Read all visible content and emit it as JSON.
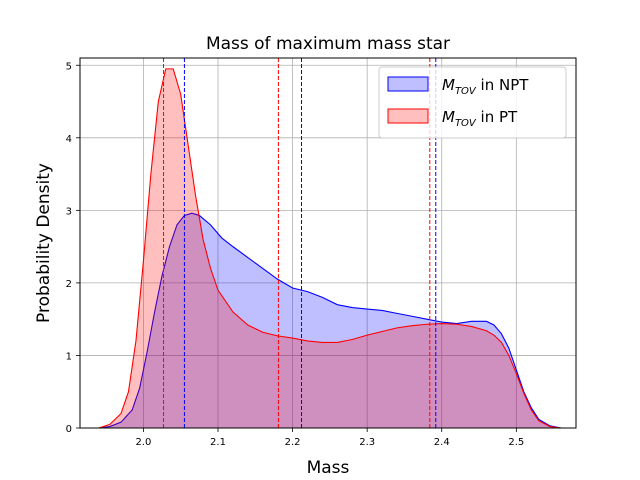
{
  "chart_data": {
    "type": "area",
    "title": "Mass of maximum mass star",
    "xlabel": "Mass",
    "ylabel": "Probability Density",
    "xlim": [
      1.915,
      2.58
    ],
    "ylim": [
      0,
      5.1
    ],
    "xticks": [
      2.0,
      2.1,
      2.2,
      2.3,
      2.4,
      2.5
    ],
    "xtick_labels": [
      "2.0",
      "2.1",
      "2.2",
      "2.3",
      "2.4",
      "2.5"
    ],
    "yticks": [
      0,
      1,
      2,
      3,
      4,
      5
    ],
    "ytick_labels": [
      "0",
      "1",
      "2",
      "3",
      "4",
      "5"
    ],
    "grid": true,
    "legend_position": "upper-right",
    "series": [
      {
        "name": "NPT",
        "legend_main": "M",
        "legend_sub": "TOV",
        "legend_suffix": " in NPT",
        "line_color": "#0000ff",
        "fill_color": "#0000ff",
        "x": [
          1.94,
          1.955,
          1.97,
          1.985,
          1.995,
          2.005,
          2.015,
          2.025,
          2.035,
          2.045,
          2.055,
          2.065,
          2.075,
          2.09,
          2.105,
          2.12,
          2.14,
          2.16,
          2.18,
          2.2,
          2.22,
          2.24,
          2.26,
          2.28,
          2.3,
          2.32,
          2.34,
          2.36,
          2.38,
          2.4,
          2.42,
          2.44,
          2.46,
          2.47,
          2.48,
          2.49,
          2.5,
          2.51,
          2.52,
          2.53,
          2.545,
          2.56
        ],
        "y": [
          0.0,
          0.02,
          0.08,
          0.25,
          0.55,
          1.05,
          1.6,
          2.1,
          2.5,
          2.8,
          2.93,
          2.96,
          2.93,
          2.8,
          2.62,
          2.5,
          2.35,
          2.2,
          2.05,
          1.93,
          1.88,
          1.8,
          1.7,
          1.66,
          1.64,
          1.62,
          1.58,
          1.54,
          1.5,
          1.46,
          1.44,
          1.47,
          1.47,
          1.42,
          1.3,
          1.1,
          0.8,
          0.5,
          0.28,
          0.12,
          0.03,
          0.0
        ]
      },
      {
        "name": "PT",
        "legend_main": "M",
        "legend_sub": "TOV",
        "legend_suffix": " in PT",
        "line_color": "#ff0000",
        "fill_color": "#ff0000",
        "x": [
          1.94,
          1.955,
          1.97,
          1.98,
          1.99,
          2.0,
          2.01,
          2.02,
          2.03,
          2.04,
          2.05,
          2.06,
          2.07,
          2.08,
          2.09,
          2.1,
          2.12,
          2.14,
          2.16,
          2.18,
          2.2,
          2.22,
          2.24,
          2.26,
          2.28,
          2.3,
          2.32,
          2.34,
          2.36,
          2.38,
          2.4,
          2.42,
          2.44,
          2.46,
          2.47,
          2.48,
          2.49,
          2.5,
          2.51,
          2.52,
          2.53,
          2.545,
          2.56
        ],
        "y": [
          0.0,
          0.05,
          0.2,
          0.5,
          1.2,
          2.3,
          3.5,
          4.5,
          4.95,
          4.95,
          4.6,
          3.9,
          3.2,
          2.6,
          2.2,
          1.9,
          1.6,
          1.42,
          1.32,
          1.27,
          1.24,
          1.2,
          1.18,
          1.18,
          1.22,
          1.28,
          1.33,
          1.38,
          1.41,
          1.43,
          1.44,
          1.43,
          1.4,
          1.34,
          1.28,
          1.18,
          1.0,
          0.75,
          0.48,
          0.25,
          0.1,
          0.02,
          0.0
        ]
      }
    ],
    "vlines": [
      {
        "x": 2.027,
        "color": "#ff0000"
      },
      {
        "x": 2.055,
        "color": "#0000ff"
      },
      {
        "x": 2.181,
        "color": "#ff0000"
      },
      {
        "x": 2.212,
        "color": "#0000ff"
      },
      {
        "x": 2.384,
        "color": "#ff0000"
      },
      {
        "x": 2.392,
        "color": "#0000ff"
      }
    ]
  }
}
